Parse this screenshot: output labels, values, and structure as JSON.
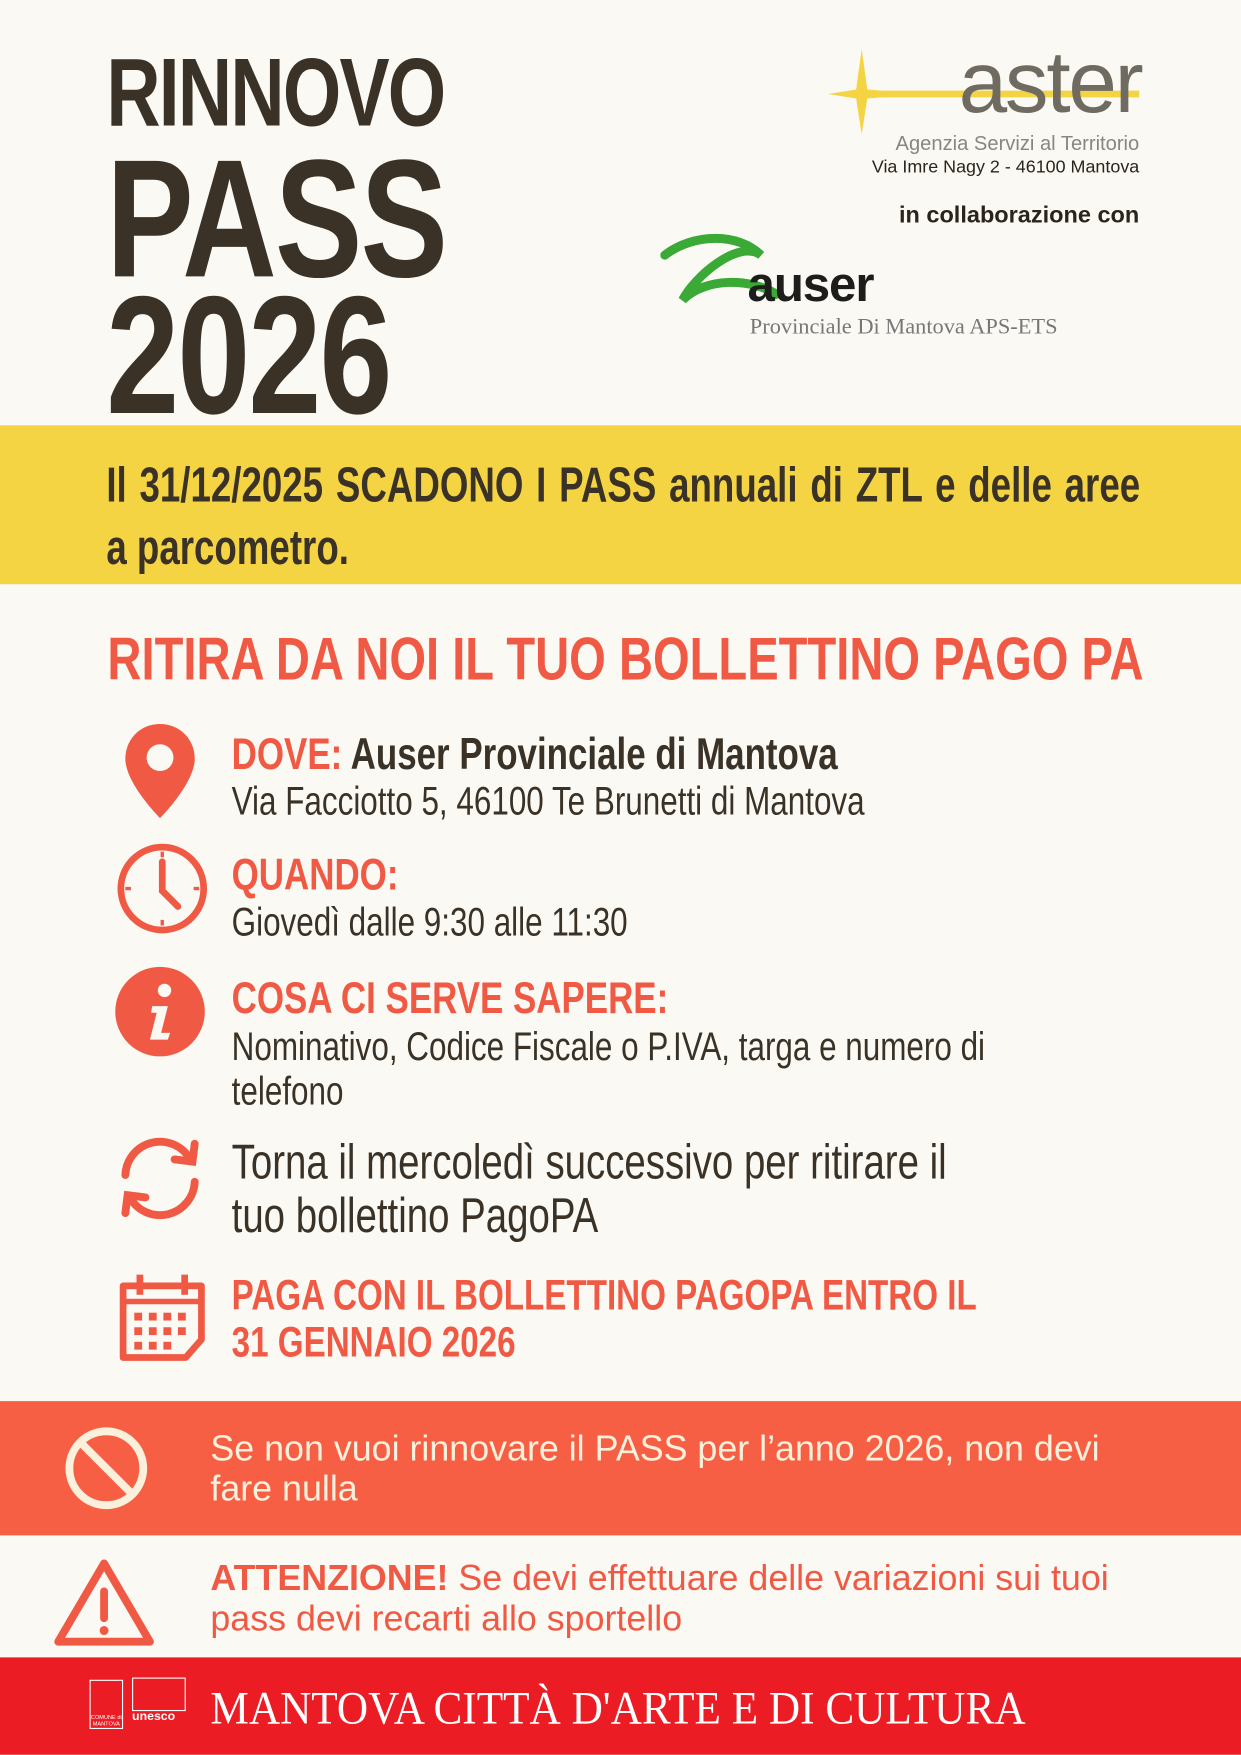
{
  "title": {
    "line1": "RINNOVO",
    "line2": "PASS",
    "line3": "2026"
  },
  "aster": {
    "logo_text": "aster",
    "subtitle": "Agenzia Servizi al Territorio",
    "address": "Via Imre Nagy 2 - 46100 Mantova"
  },
  "collab_label": "in collaborazione con",
  "auser": {
    "logo_text": "auser",
    "subtitle": "Provinciale Di Mantova APS-ETS"
  },
  "notice": "Il 31/12/2025 SCADONO I PASS annuali di ZTL e delle aree a parcometro.",
  "heading": "RITIRA DA NOI IL TUO BOLLETTINO PAGO PA",
  "items": [
    {
      "icon": "map-pin-icon",
      "label": "DOVE:",
      "value": "Auser Provinciale di Mantova",
      "text": "Via Facciotto 5, 46100 Te Brunetti di Mantova"
    },
    {
      "icon": "clock-icon",
      "label": "QUANDO:",
      "text": "Giovedì dalle 9:30 alle 11:30"
    },
    {
      "icon": "info-icon",
      "label": "COSA CI SERVE SAPERE:",
      "text": "Nominativo, Codice Fiscale o P.IVA, targa e numero di telefono"
    },
    {
      "icon": "refresh-icon",
      "text": "Torna il mercoledì successivo per ritirare il tuo bollettino PagoPA"
    },
    {
      "icon": "calendar-icon",
      "text": "PAGA CON IL BOLLETTINO PAGOPA ENTRO IL 31 GENNAIO 2026"
    }
  ],
  "banner": {
    "icon": "prohibited-icon",
    "text": "Se non vuoi rinnovare il PASS per l’anno 2026, non devi fare nulla"
  },
  "warning": {
    "icon": "warning-icon",
    "label": "ATTENZIONE!",
    "text": " Se devi effettuare delle variazioni sui tuoi pass devi recarti allo sportello"
  },
  "footer": {
    "text": "MANTOVA CITTÀ D'ARTE E DI CULTURA",
    "logo1": "COMUNE di MANTOVA",
    "logo2": "unesco"
  },
  "colors": {
    "background": "#fbf9f4",
    "dark": "#3a3226",
    "yellow": "#f4d442",
    "accent": "#f05a44",
    "banner": "#f75f44",
    "footer": "#ec1c24",
    "auser_green": "#3aa935"
  }
}
